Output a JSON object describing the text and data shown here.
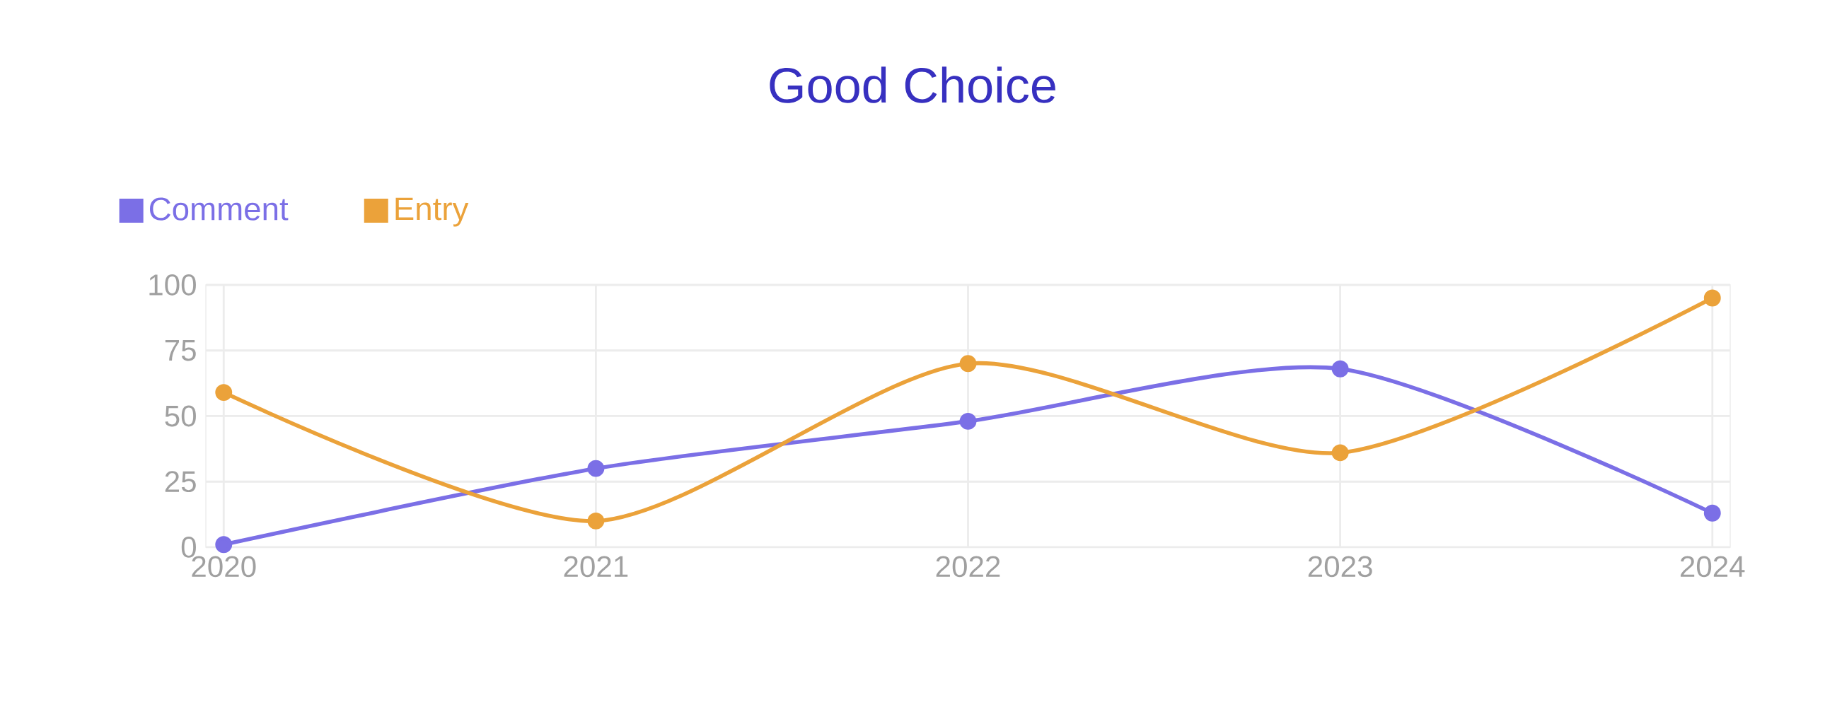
{
  "chart_data": {
    "type": "line",
    "title": "Good Choice",
    "categories": [
      "2020",
      "2021",
      "2022",
      "2023",
      "2024"
    ],
    "series": [
      {
        "name": "Comment",
        "color": "#7b6fe6",
        "values": [
          1,
          30,
          48,
          68,
          13
        ]
      },
      {
        "name": "Entry",
        "color": "#eba23a",
        "values": [
          59,
          10,
          70,
          36,
          95
        ]
      }
    ],
    "ylim": [
      0,
      100
    ],
    "yticks": [
      0,
      25,
      50,
      75,
      100
    ],
    "grid": true,
    "legend": "top left",
    "marker": "circle",
    "line_style": "solid"
  }
}
